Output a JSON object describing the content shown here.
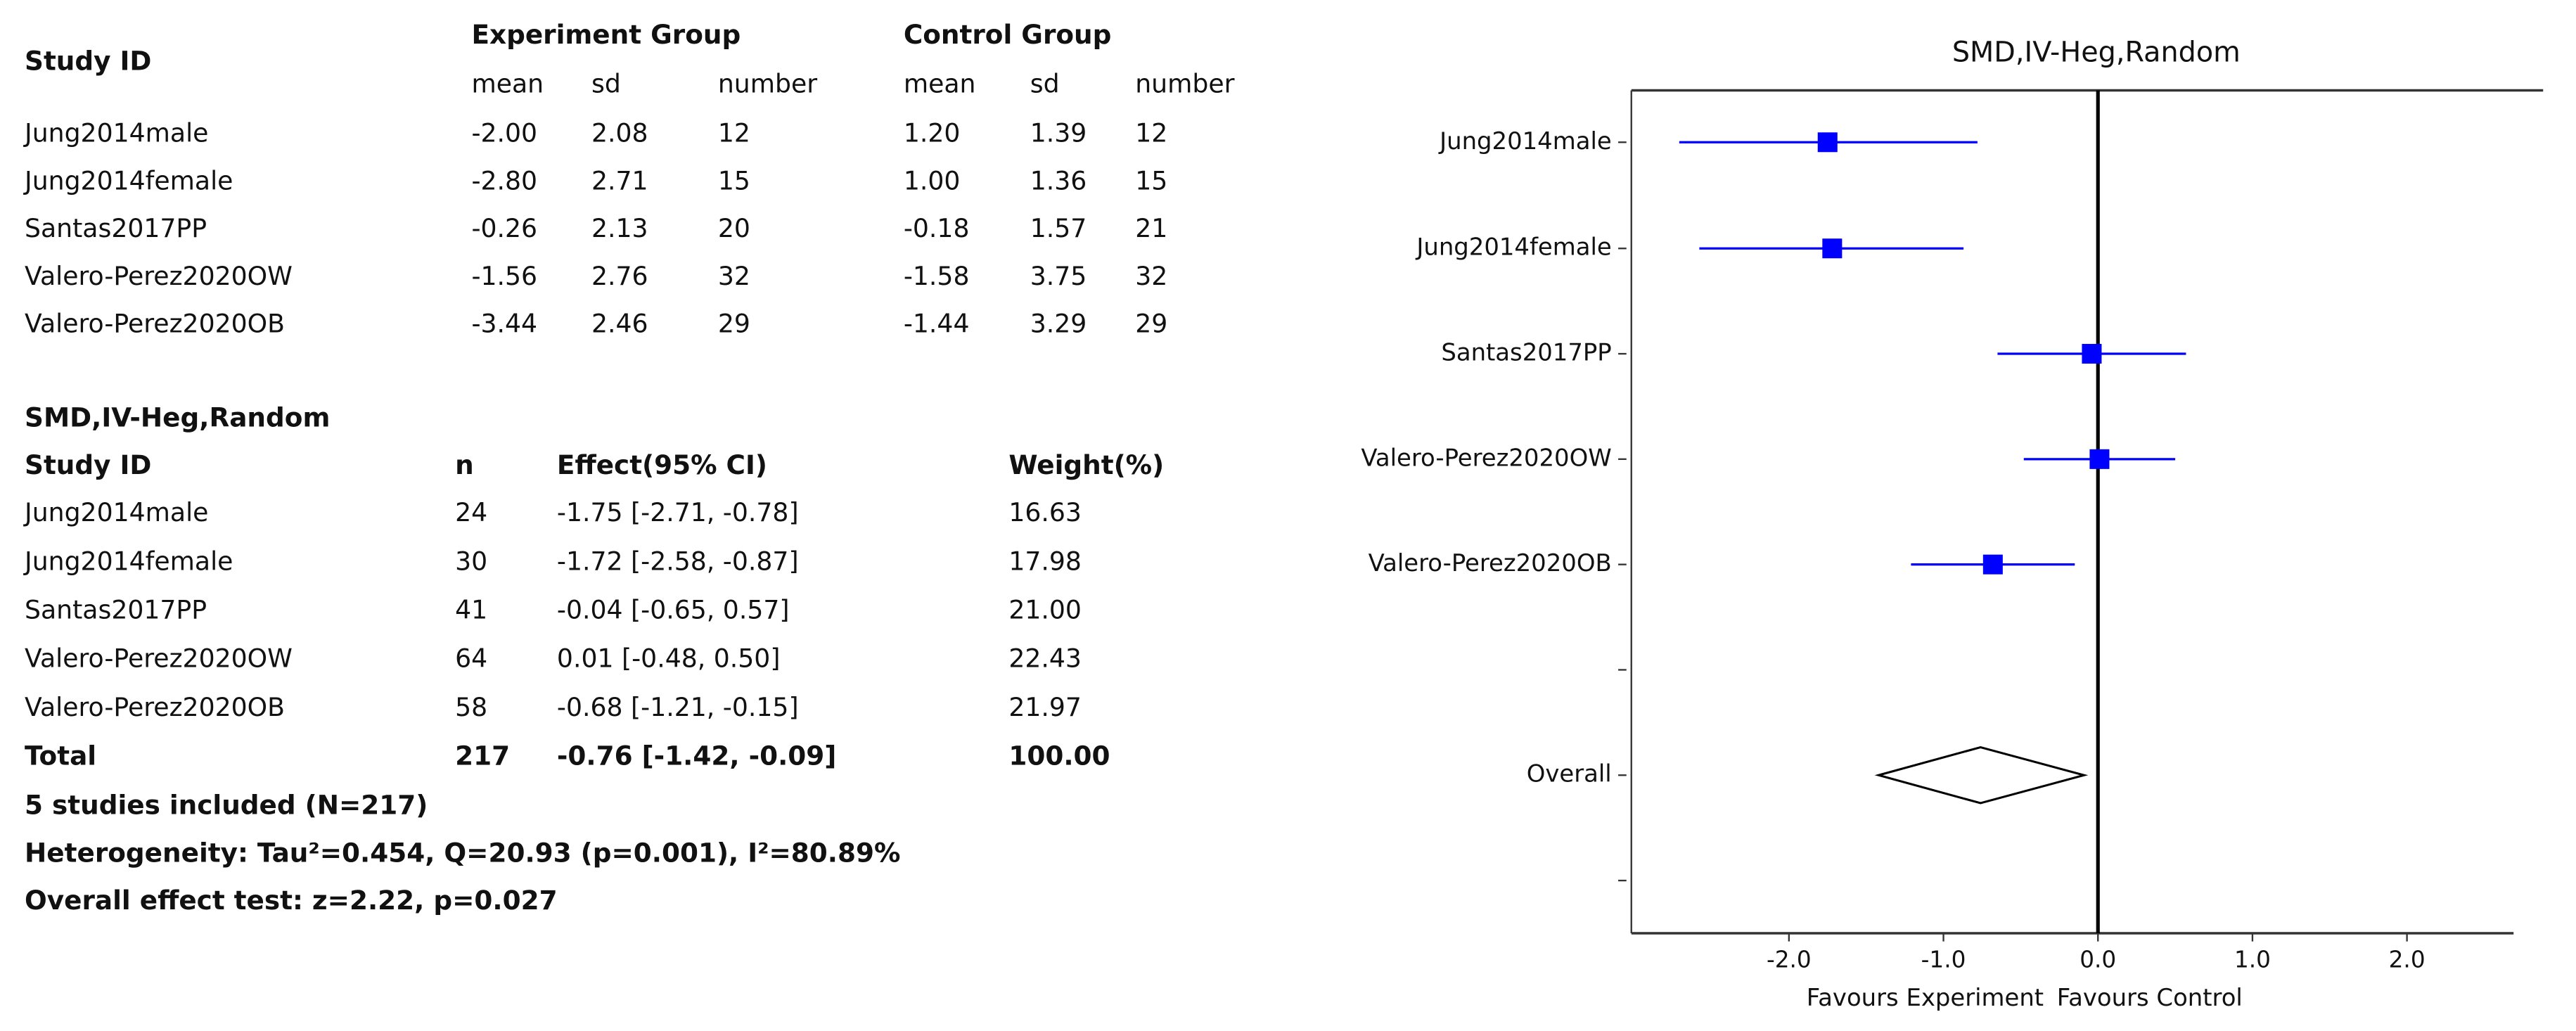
{
  "table1": {
    "header": "Study ID",
    "groups": [
      "Experiment Group",
      "Control Group"
    ],
    "columns": [
      "mean",
      "sd",
      "number",
      "mean",
      "sd",
      "number"
    ],
    "rows": [
      [
        "Jung2014male",
        "-2.00",
        "2.08",
        "12",
        "1.20",
        "1.39",
        "12"
      ],
      [
        "Jung2014female",
        "-2.80",
        "2.71",
        "15",
        "1.00",
        "1.36",
        "15"
      ],
      [
        "Santas2017PP",
        "-0.26",
        "2.13",
        "20",
        "-0.18",
        "1.57",
        "21"
      ],
      [
        "Valero-Perez2020OW",
        "-1.56",
        "2.76",
        "32",
        "-1.58",
        "3.75",
        "32"
      ],
      [
        "Valero-Perez2020OB",
        "-3.44",
        "2.46",
        "29",
        "-1.44",
        "3.29",
        "29"
      ]
    ]
  },
  "table2": {
    "title": "SMD,IV-Heg,Random",
    "columns": [
      "Study ID",
      "n",
      "Effect(95% CI)",
      "Weight(%)"
    ],
    "rows": [
      [
        "Jung2014male",
        "24",
        "-1.75 [-2.71, -0.78]",
        "16.63"
      ],
      [
        "Jung2014female",
        "30",
        "-1.72 [-2.58, -0.87]",
        "17.98"
      ],
      [
        "Santas2017PP",
        "41",
        "-0.04 [-0.65, 0.57]",
        "21.00"
      ],
      [
        "Valero-Perez2020OW",
        "64",
        "0.01 [-0.48, 0.50]",
        "22.43"
      ],
      [
        "Valero-Perez2020OB",
        "58",
        "-0.68 [-1.21, -0.15]",
        "21.97"
      ]
    ],
    "total": [
      "Total",
      "217",
      "-0.76 [-1.42, -0.09]",
      "100.00"
    ]
  },
  "notes": [
    "5 studies included (N=217)",
    "Heterogeneity: Tau²=0.454, Q=20.93 (p=0.001), I²=80.89%",
    "Overall effect test: z=2.22, p=0.027"
  ],
  "chart_data": {
    "type": "forest",
    "title": "SMD,IV-Heg,Random",
    "categories": [
      "Jung2014male",
      "Jung2014female",
      "Santas2017PP",
      "Valero-Perez2020OW",
      "Valero-Perez2020OB",
      null,
      "Overall",
      null
    ],
    "values": [
      -1.75,
      -1.72,
      -0.04,
      0.01,
      -0.68,
      null,
      -0.76,
      null
    ],
    "lower": [
      -2.71,
      -2.58,
      -0.65,
      -0.48,
      -1.21,
      null,
      -1.42,
      null
    ],
    "upper": [
      -0.78,
      -0.87,
      0.57,
      0.5,
      -0.15,
      null,
      -0.09,
      null
    ],
    "shapes": [
      "square",
      "square",
      "square",
      "square",
      "square",
      null,
      "diamond",
      null
    ],
    "color": "#0000ff",
    "xlim": [
      -3.02,
      2.69
    ],
    "xticks": [
      {
        "value": -2,
        "label": "-2.0"
      },
      {
        "value": -1,
        "label": "-1.0"
      },
      {
        "value": 0,
        "label": "0.0"
      },
      {
        "value": 1,
        "label": "1.0"
      },
      {
        "value": 2,
        "label": "2.0"
      }
    ],
    "xlabels": [
      "Favours Experiment",
      "Favours Control"
    ]
  }
}
